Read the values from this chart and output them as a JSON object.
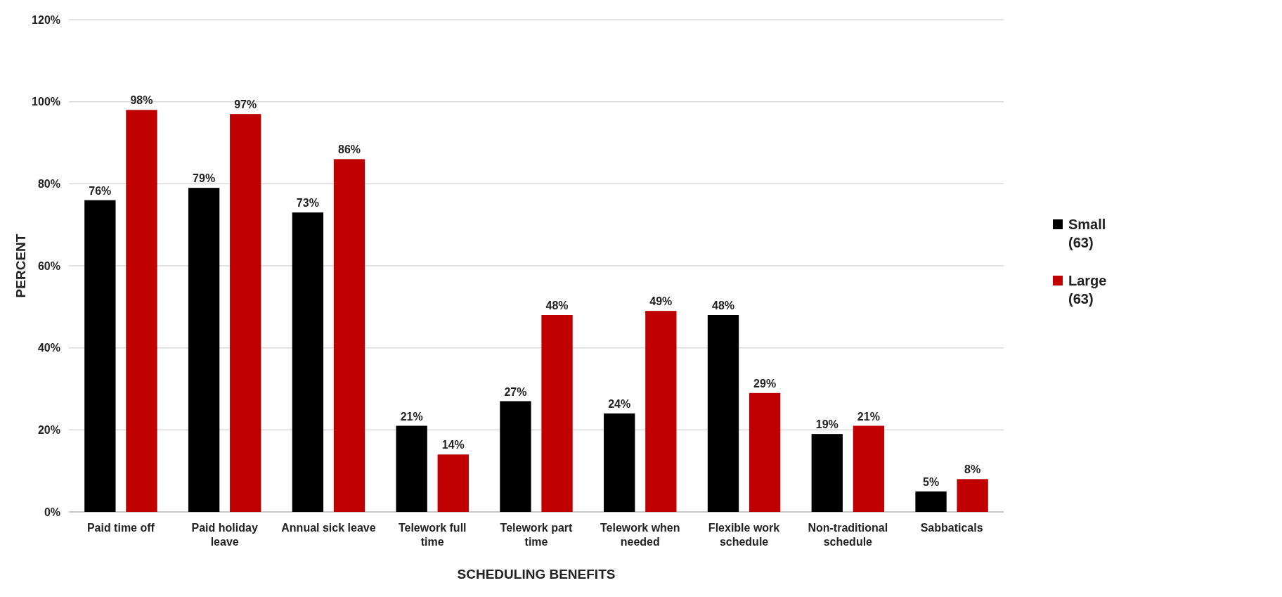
{
  "chart_data": {
    "type": "bar",
    "xlabel": "SCHEDULING BENEFITS",
    "ylabel": "PERCENT",
    "categories": [
      "Paid time off",
      "Paid holiday leave",
      "Annual sick leave",
      "Telework full time",
      "Telework part time",
      "Telework when needed",
      "Flexible work schedule",
      "Non-traditional schedule",
      "Sabbaticals"
    ],
    "series": [
      {
        "name": "Small (63)",
        "color": "#000000",
        "values": [
          76,
          79,
          73,
          21,
          27,
          24,
          48,
          19,
          5
        ],
        "value_labels": [
          "76%",
          "79%",
          "73%",
          "21%",
          "27%",
          "24%",
          "48%",
          "19%",
          "5%"
        ]
      },
      {
        "name": "Large (63)",
        "color": "#c00000",
        "values": [
          98,
          97,
          86,
          14,
          48,
          49,
          29,
          21,
          8
        ],
        "value_labels": [
          "98%",
          "97%",
          "86%",
          "14%",
          "48%",
          "49%",
          "29%",
          "21%",
          "8%"
        ]
      }
    ],
    "ylim": [
      0,
      120
    ],
    "yticks": [
      {
        "value": 0,
        "label": "0%"
      },
      {
        "value": 20,
        "label": "20%"
      },
      {
        "value": 40,
        "label": "40%"
      },
      {
        "value": 60,
        "label": "60%"
      },
      {
        "value": 80,
        "label": "80%"
      },
      {
        "value": 100,
        "label": "100%"
      },
      {
        "value": 120,
        "label": "120%"
      }
    ],
    "grid": "y",
    "legend": "right"
  }
}
